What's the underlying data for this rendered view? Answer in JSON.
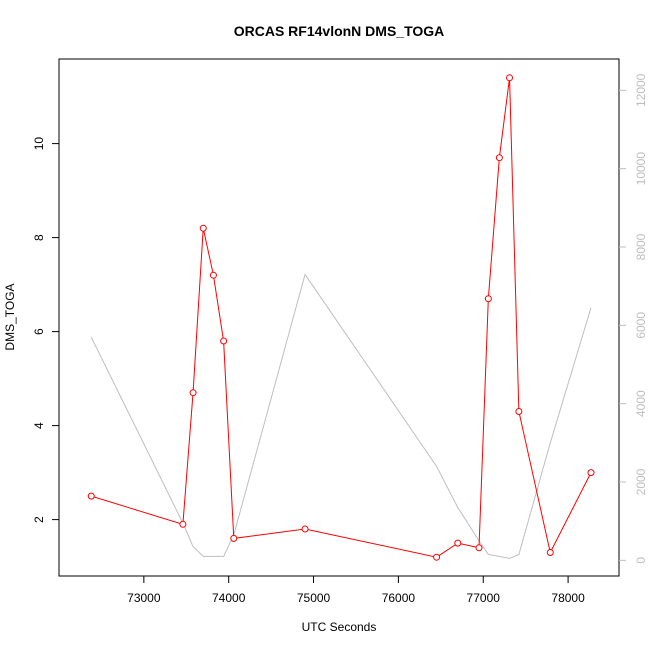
{
  "chart_data": {
    "type": "line",
    "title": "ORCAS RF14vlonN DMS_TOGA",
    "xlabel": "UTC Seconds",
    "ylabel": "DMS_TOGA",
    "xlim": [
      72000,
      78600
    ],
    "ylim": [
      0.8,
      11.8
    ],
    "y2lim": [
      -400,
      12800
    ],
    "xticks": [
      73000,
      74000,
      75000,
      76000,
      77000,
      78000
    ],
    "yticks": [
      2,
      4,
      6,
      8,
      10
    ],
    "y2ticks": [
      0,
      2000,
      4000,
      6000,
      8000,
      10000,
      12000
    ],
    "colors": {
      "primary": "#ff0000",
      "secondary": "#bebebe",
      "axis": "#000000",
      "secondary_axis": "#bebebe"
    },
    "series": [
      {
        "axis": "left",
        "marker": "open-circle",
        "x": [
          72380,
          73460,
          73580,
          73700,
          73820,
          73940,
          74060,
          74900,
          76450,
          76700,
          76950,
          77060,
          77190,
          77310,
          77420,
          77790,
          78270
        ],
        "y": [
          2.5,
          1.9,
          4.7,
          8.2,
          7.2,
          5.8,
          1.6,
          1.8,
          1.2,
          1.5,
          1.4,
          6.7,
          9.7,
          11.4,
          4.3,
          1.3,
          3.0
        ]
      },
      {
        "axis": "right",
        "x": [
          72380,
          73460,
          73580,
          73700,
          73820,
          73940,
          74060,
          74900,
          76450,
          76700,
          76950,
          77060,
          77190,
          77310,
          77420,
          77790,
          78270
        ],
        "y": [
          5700,
          950,
          350,
          100,
          100,
          100,
          650,
          7300,
          2400,
          1350,
          500,
          150,
          100,
          50,
          150,
          3000,
          6450
        ]
      }
    ]
  }
}
